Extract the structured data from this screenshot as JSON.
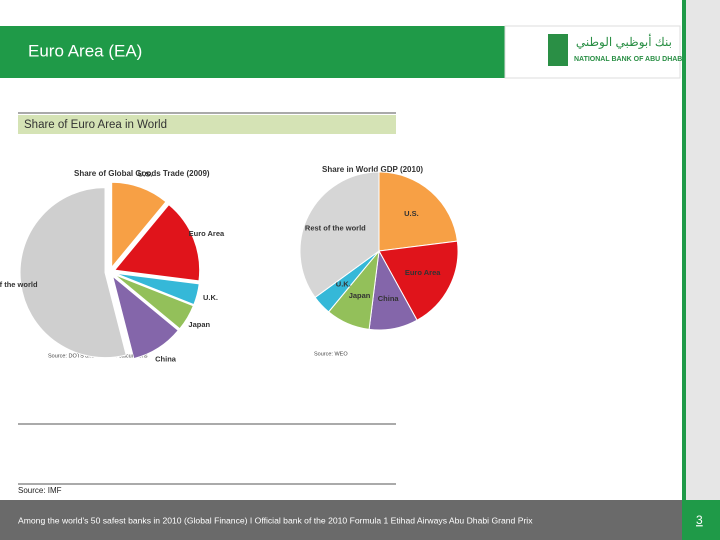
{
  "slide": {
    "title": "Euro Area (EA)",
    "logo_arabic": "بنك أبوظبي الوطني",
    "logo_english": "NATIONAL BANK OF ABU DHABI",
    "panel_title": "Share of Euro Area in World",
    "source": "Source: IMF",
    "footer": "Among the world's 50 safest banks in 2010 (Global Finance) I Official bank of the 2010 Formula 1 Etihad Airways Abu Dhabi Grand Prix",
    "page_number": "3"
  },
  "chart_data": [
    {
      "type": "pie",
      "title": "Share of Global Goods Trade (2009)",
      "note": "Source: DOTS and IMF staff calculations",
      "categories": [
        "U.S.",
        "Euro Area",
        "U.K.",
        "Japan",
        "China",
        "Rest of the world"
      ],
      "values": [
        11,
        16,
        4,
        5,
        10,
        54
      ],
      "colors": [
        "#f7a045",
        "#e0141b",
        "#35b8d8",
        "#93c05a",
        "#8466aa",
        "#cfcfcf"
      ]
    },
    {
      "type": "pie",
      "title": "Share in World GDP (2010)",
      "note": "Source: WEO",
      "categories": [
        "U.S.",
        "Euro Area",
        "China",
        "Japan",
        "U.K.",
        "Rest of the world"
      ],
      "values": [
        23,
        19,
        10,
        9,
        4,
        35
      ],
      "colors": [
        "#f7a045",
        "#e0141b",
        "#8466aa",
        "#93c05a",
        "#35b8d8",
        "#d6d6d6"
      ]
    }
  ]
}
